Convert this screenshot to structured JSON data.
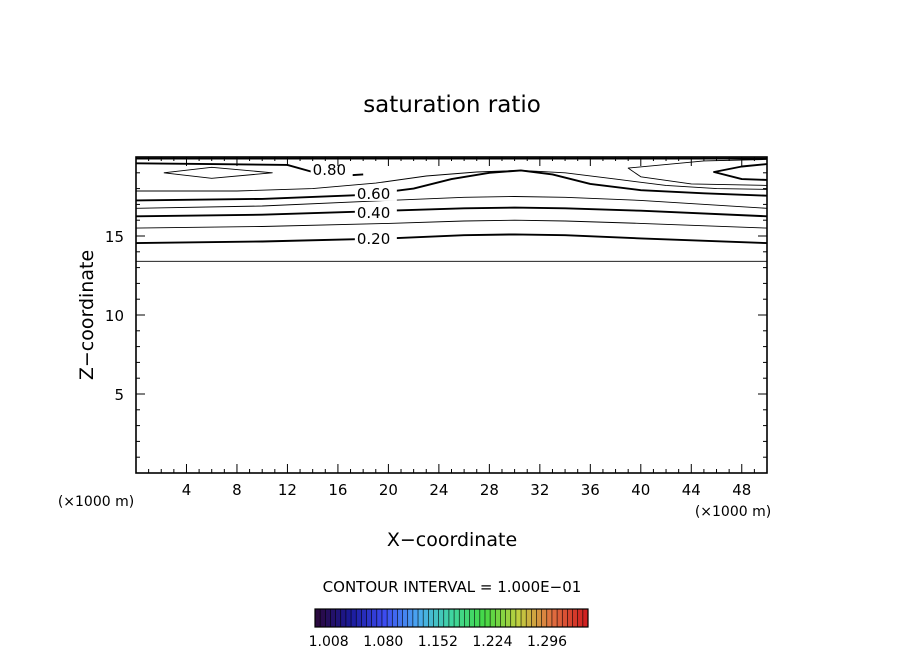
{
  "chart_data": {
    "type": "contour",
    "title": "saturation ratio",
    "xlabel": "X−coordinate",
    "ylabel": "Z−coordinate",
    "x_unit_left": "(×1000 m)",
    "x_unit_right": "(×1000 m)",
    "xlim": [
      0,
      50
    ],
    "ylim": [
      0,
      20
    ],
    "x_ticks": [
      4,
      8,
      12,
      16,
      20,
      24,
      28,
      32,
      36,
      40,
      44,
      48
    ],
    "y_ticks": [
      5,
      10,
      15
    ],
    "contour_interval_text": "CONTOUR INTERVAL = 1.000E−01",
    "contour_levels": [
      {
        "level": 0.1,
        "label": "",
        "points": [
          [
            0,
            13.4
          ],
          [
            50,
            13.4
          ]
        ]
      },
      {
        "level": 0.2,
        "label": "0.20",
        "label_at": [
          17.5,
          14.75
        ],
        "points": [
          [
            0,
            14.55
          ],
          [
            10,
            14.65
          ],
          [
            20,
            14.85
          ],
          [
            26,
            15.05
          ],
          [
            30,
            15.1
          ],
          [
            34,
            15.05
          ],
          [
            40,
            14.85
          ],
          [
            50,
            14.55
          ]
        ]
      },
      {
        "level": 0.3,
        "label": "",
        "points": [
          [
            0,
            15.5
          ],
          [
            10,
            15.6
          ],
          [
            20,
            15.8
          ],
          [
            26,
            15.95
          ],
          [
            30,
            16.0
          ],
          [
            34,
            15.95
          ],
          [
            40,
            15.8
          ],
          [
            50,
            15.5
          ]
        ]
      },
      {
        "level": 0.4,
        "label": "0.40",
        "label_at": [
          17.5,
          16.4
        ],
        "points": [
          [
            0,
            16.25
          ],
          [
            10,
            16.35
          ],
          [
            20,
            16.6
          ],
          [
            26,
            16.75
          ],
          [
            30,
            16.8
          ],
          [
            34,
            16.75
          ],
          [
            40,
            16.6
          ],
          [
            50,
            16.25
          ]
        ]
      },
      {
        "level": 0.5,
        "label": "",
        "points": [
          [
            0,
            16.75
          ],
          [
            10,
            16.9
          ],
          [
            20,
            17.25
          ],
          [
            26,
            17.45
          ],
          [
            30,
            17.5
          ],
          [
            34,
            17.45
          ],
          [
            40,
            17.25
          ],
          [
            50,
            16.75
          ]
        ]
      },
      {
        "level": 0.6,
        "label": "0.60",
        "label_at": [
          17.5,
          17.6
        ],
        "points": [
          [
            0,
            17.25
          ],
          [
            10,
            17.35
          ],
          [
            18,
            17.6
          ],
          [
            22,
            18.0
          ],
          [
            25,
            18.6
          ],
          [
            28,
            19.0
          ],
          [
            30.5,
            19.15
          ],
          [
            33,
            18.9
          ],
          [
            36,
            18.3
          ],
          [
            40,
            17.9
          ],
          [
            45,
            17.7
          ],
          [
            50,
            17.55
          ]
        ]
      },
      {
        "level": 0.7,
        "label": "",
        "points": [
          [
            0,
            17.85
          ],
          [
            8,
            17.85
          ],
          [
            14,
            18.0
          ],
          [
            19,
            18.35
          ],
          [
            23,
            18.8
          ],
          [
            27,
            19.05
          ],
          [
            30.5,
            19.15
          ],
          [
            34,
            19.0
          ],
          [
            38,
            18.6
          ],
          [
            42,
            18.2
          ],
          [
            46,
            18.0
          ],
          [
            50,
            17.95
          ]
        ]
      },
      {
        "level": 0.8,
        "label": "0.80",
        "label_at": [
          14,
          19.1
        ],
        "points": [
          [
            0,
            19.6
          ],
          [
            6,
            19.55
          ],
          [
            12,
            19.5
          ],
          [
            14,
            19.05
          ],
          [
            16,
            18.8
          ],
          [
            18,
            18.9
          ]
        ]
      },
      {
        "level": 0.9,
        "label": "",
        "points": [
          [
            2.2,
            19.0
          ],
          [
            6,
            19.35
          ],
          [
            10.8,
            19.0
          ],
          [
            6,
            18.65
          ],
          [
            2.2,
            19.0
          ]
        ]
      },
      {
        "level": 0.9,
        "label": "",
        "points": [
          [
            50,
            19.85
          ],
          [
            45,
            19.75
          ],
          [
            39,
            19.3
          ],
          [
            40,
            18.75
          ],
          [
            44,
            18.3
          ],
          [
            50,
            18.2
          ]
        ]
      },
      {
        "level": 1.0,
        "label": "",
        "points": [
          [
            50,
            19.55
          ],
          [
            48,
            19.4
          ],
          [
            45.8,
            19.05
          ],
          [
            48,
            18.6
          ],
          [
            50,
            18.55
          ]
        ]
      },
      {
        "level": 1.0,
        "label": "",
        "points": [
          [
            0,
            19.9
          ],
          [
            50,
            19.9
          ]
        ]
      }
    ],
    "colorbar": {
      "tick_labels": [
        "1.008",
        "1.080",
        "1.152",
        "1.224",
        "1.296"
      ],
      "tick_values": [
        1.008,
        1.08,
        1.152,
        1.224,
        1.296
      ],
      "range": [
        0.99,
        1.35
      ],
      "stripe_count": 53,
      "colors": [
        "#2a0a40",
        "#1a1a9a",
        "#3c4cf0",
        "#4aa8f0",
        "#3fd6a0",
        "#44d844",
        "#c0d040",
        "#e07040",
        "#d02020"
      ]
    }
  }
}
